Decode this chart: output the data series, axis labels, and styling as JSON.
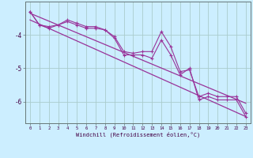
{
  "xlabel": "Windchill (Refroidissement éolien,°C)",
  "background_color": "#cceeff",
  "grid_color": "#aacccc",
  "line_color": "#993399",
  "x_values": [
    0,
    1,
    2,
    3,
    4,
    5,
    6,
    7,
    8,
    9,
    10,
    11,
    12,
    13,
    14,
    15,
    16,
    17,
    18,
    19,
    20,
    21,
    22,
    23
  ],
  "line1_y": [
    -3.3,
    -3.7,
    -3.75,
    -3.7,
    -3.55,
    -3.65,
    -3.75,
    -3.75,
    -3.85,
    -4.05,
    -4.5,
    -4.55,
    -4.5,
    -4.5,
    -3.9,
    -4.35,
    -5.1,
    -5.05,
    -5.85,
    -5.75,
    -5.85,
    -5.85,
    -5.85,
    -6.35
  ],
  "line2_y": [
    -3.3,
    -3.7,
    -3.8,
    -3.7,
    -3.6,
    -3.7,
    -3.8,
    -3.8,
    -3.85,
    -4.1,
    -4.6,
    -4.6,
    -4.6,
    -4.7,
    -4.15,
    -4.6,
    -5.2,
    -5.0,
    -5.95,
    -5.85,
    -5.95,
    -5.95,
    -5.95,
    -6.45
  ],
  "trend_x": [
    0,
    23
  ],
  "trend1_y": [
    -3.35,
    -6.05
  ],
  "trend2_y": [
    -3.55,
    -6.45
  ],
  "ylim_min": -6.65,
  "ylim_max": -3.0,
  "xlim_min": -0.5,
  "xlim_max": 23.5,
  "yticks": [
    -6,
    -5,
    -4
  ],
  "ytick_labels": [
    "-6",
    "-5",
    "-4"
  ]
}
